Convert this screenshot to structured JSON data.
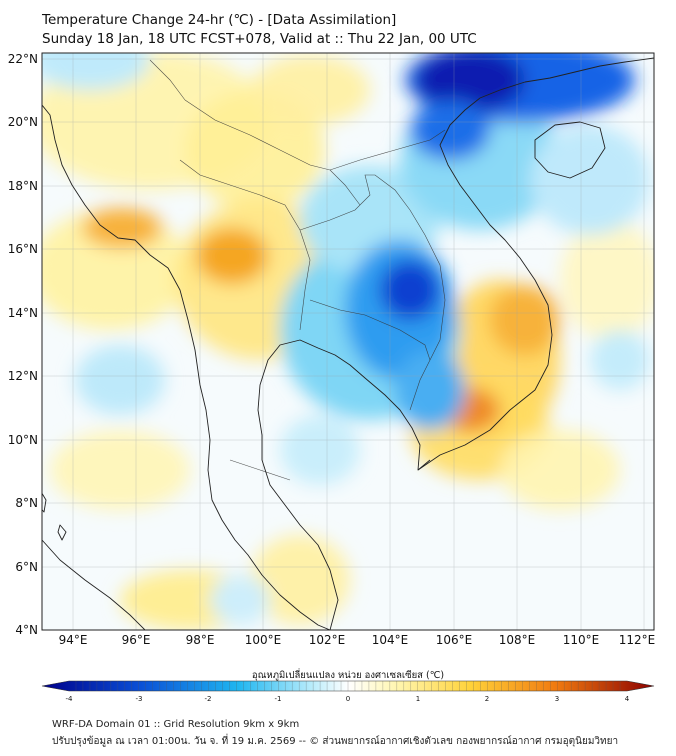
{
  "header": {
    "title": "Temperature Change 24-hr (℃) - [Data Assimilation]",
    "subtitle": "Sunday 18 Jan, 18 UTC FCST+078, Valid at :: Thu 22 Jan, 00 UTC"
  },
  "map": {
    "lat_labels": [
      "22°N",
      "20°N",
      "18°N",
      "16°N",
      "14°N",
      "12°N",
      "10°N",
      "8°N",
      "6°N",
      "4°N"
    ],
    "lon_labels": [
      "94°E",
      "96°E",
      "98°E",
      "100°E",
      "102°E",
      "104°E",
      "106°E",
      "108°E",
      "110°E",
      "112°E"
    ],
    "lat_range": [
      4,
      22
    ],
    "lon_range": [
      93,
      112.3
    ]
  },
  "colorbar": {
    "label": "อุณหภูมิเปลี่ยนแปลง หน่วย องศาเซลเซียส (℃)",
    "ticks": [
      "-4",
      "-3",
      "-2",
      "-1",
      "0",
      "1",
      "2",
      "3",
      "4"
    ],
    "min": -4,
    "max": 4
  },
  "footer": {
    "line1": "WRF-DA Domain 01 :: Grid Resolution 9km x 9km",
    "line2": "ปรับปรุงข้อมูล ณ เวลา 01:00น. วัน จ. ที่ 19 ม.ค. 2569 -- © ส่วนพยากรณ์อากาศเชิงตัวเลข กองพยากรณ์อากาศ กรมอุตุนิยมวิทยา"
  },
  "colors": {
    "cold_extreme": "#00008b",
    "cold": "#1e90ff",
    "cool": "#87ceeb",
    "neutral": "#ffffff",
    "warm": "#ffe97a",
    "hot": "#f08c1a",
    "hot_extreme": "#b00000",
    "coastline": "#222222",
    "border": "#333333"
  }
}
